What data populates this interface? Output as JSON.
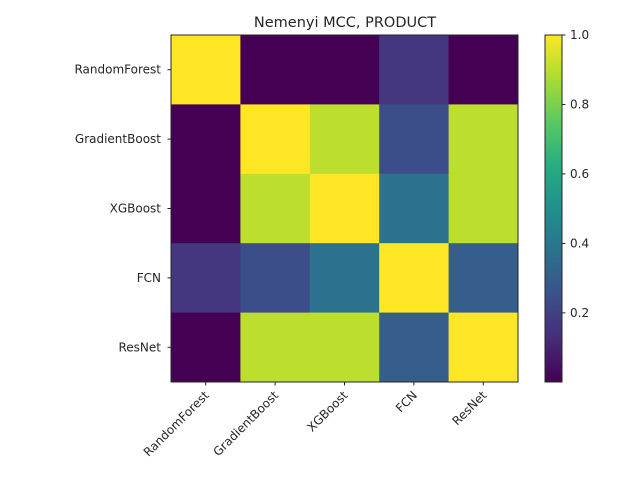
{
  "chart_data": {
    "type": "heatmap",
    "title": "Nemenyi MCC, PRODUCT",
    "xlabel": "",
    "ylabel": "",
    "x_categories": [
      "RandomForest",
      "GradientBoost",
      "XGBoost",
      "FCN",
      "ResNet"
    ],
    "y_categories": [
      "RandomForest",
      "GradientBoost",
      "XGBoost",
      "FCN",
      "ResNet"
    ],
    "values": [
      [
        1.0,
        0.001,
        0.001,
        0.16,
        0.001
      ],
      [
        0.001,
        1.0,
        0.9,
        0.24,
        0.9
      ],
      [
        0.001,
        0.9,
        1.0,
        0.38,
        0.9
      ],
      [
        0.16,
        0.24,
        0.38,
        1.0,
        0.3
      ],
      [
        0.001,
        0.9,
        0.9,
        0.3,
        1.0
      ]
    ],
    "colormap": "viridis",
    "vmin": 0.001,
    "vmax": 1.0,
    "colorbar_ticks": [
      0.2,
      0.4,
      0.6,
      0.8,
      1.0
    ],
    "colorbar_tick_labels": [
      "0.2",
      "0.4",
      "0.6",
      "0.8",
      "1.0"
    ],
    "grid": false,
    "xtick_rotation": 45
  }
}
